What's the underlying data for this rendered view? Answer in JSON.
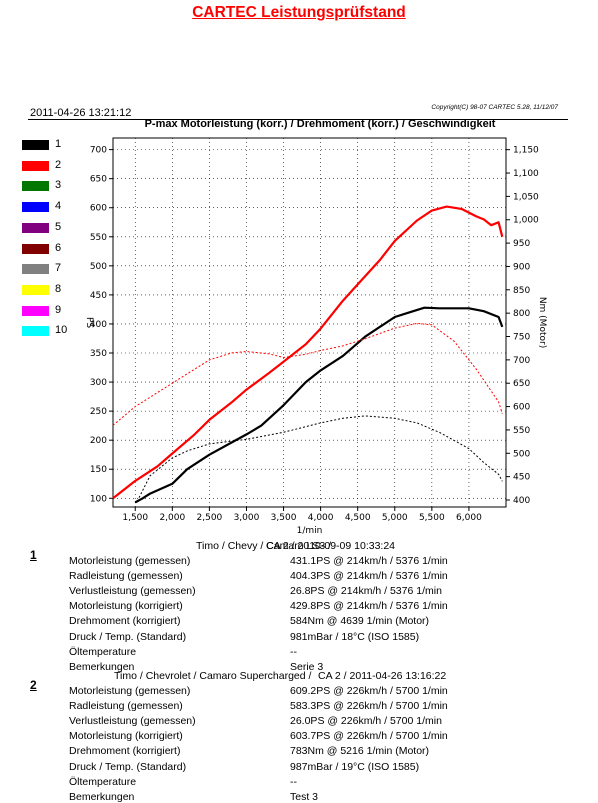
{
  "page": {
    "title": "CARTEC Leistungsprüfstand",
    "timestamp": "2011-04-26 13:21:12",
    "copyright": "Copyright(C) 98-07 CARTEC 5.28, 11/12/07"
  },
  "legend": [
    {
      "label": "1",
      "color": "#000000"
    },
    {
      "label": "2",
      "color": "#ff0000"
    },
    {
      "label": "3",
      "color": "#007700"
    },
    {
      "label": "4",
      "color": "#0000ff"
    },
    {
      "label": "5",
      "color": "#800080"
    },
    {
      "label": "6",
      "color": "#800000"
    },
    {
      "label": "7",
      "color": "#808080"
    },
    {
      "label": "8",
      "color": "#ffff00"
    },
    {
      "label": "9",
      "color": "#ff00ff"
    },
    {
      "label": "10",
      "color": "#00ffff"
    }
  ],
  "chart_data": {
    "type": "line",
    "title": "P-max Motorleistung (korr.) / Drehmoment (korr.) / Geschwindigkeit",
    "xlabel": "1/min",
    "ylabel": "PS",
    "ylabel_right": "Nm (Motor)",
    "xlim": [
      1200,
      6500
    ],
    "ylim": [
      85,
      720
    ],
    "ylim_right": [
      385,
      1175
    ],
    "x_ticks": [
      "1,500",
      "2,000",
      "2,500",
      "3,000",
      "3,500",
      "4,000",
      "4,500",
      "5,000",
      "5,500",
      "6,000"
    ],
    "x_tick_values": [
      1500,
      2000,
      2500,
      3000,
      3500,
      4000,
      4500,
      5000,
      5500,
      6000
    ],
    "y_ticks": [
      100,
      150,
      200,
      250,
      300,
      350,
      400,
      450,
      500,
      550,
      600,
      650,
      700
    ],
    "y_right_ticks": [
      "400",
      "450",
      "500",
      "550",
      "600",
      "650",
      "700",
      "750",
      "800",
      "850",
      "900",
      "950",
      "1,000",
      "1,050",
      "1,100",
      "1,150"
    ],
    "y_right_tick_values": [
      400,
      450,
      500,
      550,
      600,
      650,
      700,
      750,
      800,
      850,
      900,
      950,
      1000,
      1050,
      1100,
      1150
    ],
    "grid": true,
    "series": [
      {
        "name": "1",
        "axis": "left",
        "color": "#000000",
        "style": "solid",
        "x": [
          1500,
          1600,
          1700,
          2000,
          2200,
          2500,
          2800,
          3000,
          3200,
          3500,
          3800,
          4000,
          4300,
          4600,
          5000,
          5200,
          5400,
          5600,
          5800,
          6000,
          6200,
          6400,
          6450
        ],
        "y": [
          93,
          100,
          108,
          125,
          150,
          175,
          196,
          210,
          225,
          260,
          300,
          320,
          345,
          378,
          412,
          420,
          428,
          427,
          427,
          427,
          422,
          412,
          395
        ]
      },
      {
        "name": "2",
        "axis": "left",
        "color": "#ff0000",
        "style": "solid",
        "x": [
          1200,
          1500,
          1800,
          2000,
          2300,
          2500,
          2800,
          3000,
          3300,
          3500,
          3800,
          4000,
          4300,
          4500,
          4800,
          5000,
          5300,
          5500,
          5700,
          5900,
          6100,
          6200,
          6300,
          6400,
          6450
        ],
        "y": [
          100,
          130,
          155,
          177,
          210,
          235,
          265,
          287,
          315,
          335,
          365,
          392,
          440,
          468,
          510,
          543,
          578,
          595,
          602,
          598,
          585,
          580,
          570,
          575,
          550
        ]
      },
      {
        "name": "1",
        "axis": "right",
        "color": "#000000",
        "style": "dotted",
        "x": [
          1550,
          1700,
          2000,
          2200,
          2500,
          3000,
          3500,
          4000,
          4300,
          4600,
          5000,
          5300,
          5600,
          6000,
          6200,
          6400,
          6450
        ],
        "y": [
          405,
          452,
          490,
          505,
          520,
          530,
          545,
          565,
          575,
          580,
          575,
          565,
          545,
          510,
          480,
          455,
          440
        ]
      },
      {
        "name": "2",
        "axis": "right",
        "color": "#ff0000",
        "style": "dotted",
        "x": [
          1200,
          1500,
          2000,
          2500,
          2800,
          3000,
          3300,
          3500,
          3800,
          4000,
          4300,
          4600,
          5000,
          5300,
          5500,
          5800,
          6100,
          6400,
          6450
        ],
        "y": [
          560,
          600,
          650,
          700,
          715,
          718,
          713,
          705,
          712,
          720,
          730,
          745,
          768,
          778,
          775,
          740,
          680,
          610,
          585
        ]
      }
    ]
  },
  "results": [
    {
      "index": "1",
      "header": "Timo / Chevy / Camaro LS3 /",
      "header2": "CA 2 / 2010-09-09 10:33:24",
      "rows": [
        {
          "label": "Motorleistung (gemessen)",
          "value": "431.1PS @ 214km/h / 5376 1/min"
        },
        {
          "label": "Radleistung (gemessen)",
          "value": "404.3PS @ 214km/h / 5376 1/min"
        },
        {
          "label": "Verlustleistung (gemessen)",
          "value": "26.8PS @ 214km/h / 5376 1/min"
        },
        {
          "label": "Motorleistung (korrigiert)",
          "value": "429.8PS @ 214km/h / 5376 1/min"
        },
        {
          "label": "Drehmoment (korrigiert)",
          "value": "584Nm @ 4639 1/min (Motor)"
        },
        {
          "label": "Druck / Temp. (Standard)",
          "value": "981mBar / 18°C   (ISO 1585)"
        },
        {
          "label": "Öltemperature",
          "value": "--"
        },
        {
          "label": "Bemerkungen",
          "value": "Serie 3"
        }
      ]
    },
    {
      "index": "2",
      "header": "Timo / Chevrolet / Camaro Supercharged /",
      "header2": "CA 2 / 2011-04-26 13:16:22",
      "rows": [
        {
          "label": "Motorleistung (gemessen)",
          "value": "609.2PS @ 226km/h / 5700 1/min"
        },
        {
          "label": "Radleistung (gemessen)",
          "value": "583.3PS @ 226km/h / 5700 1/min"
        },
        {
          "label": "Verlustleistung (gemessen)",
          "value": "26.0PS @ 226km/h / 5700 1/min"
        },
        {
          "label": "Motorleistung (korrigiert)",
          "value": "603.7PS @ 226km/h / 5700 1/min"
        },
        {
          "label": "Drehmoment (korrigiert)",
          "value": "783Nm @ 5216 1/min (Motor)"
        },
        {
          "label": "Druck / Temp. (Standard)",
          "value": "987mBar / 19°C   (ISO 1585)"
        },
        {
          "label": "Öltemperature",
          "value": "--"
        },
        {
          "label": "Bemerkungen",
          "value": "Test 3"
        }
      ]
    }
  ]
}
